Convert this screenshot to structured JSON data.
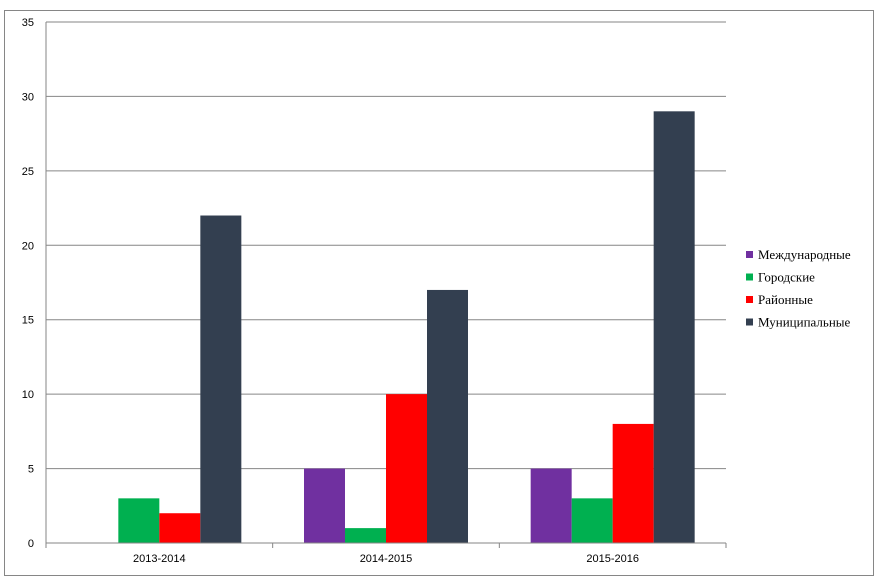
{
  "chart_data": {
    "type": "bar",
    "categories": [
      "2013-2014",
      "2014-2015",
      "2015-2016"
    ],
    "series": [
      {
        "name": "Международные",
        "color": "#7030a0",
        "values": [
          0,
          5,
          5
        ]
      },
      {
        "name": "Городские",
        "color": "#00b050",
        "values": [
          3,
          1,
          3
        ]
      },
      {
        "name": "Районные",
        "color": "#ff0000",
        "values": [
          2,
          10,
          8
        ]
      },
      {
        "name": "Муниципальные",
        "color": "#333f50",
        "values": [
          22,
          17,
          29
        ]
      }
    ],
    "ylim": [
      0,
      35
    ],
    "yticks": [
      0,
      5,
      10,
      15,
      20,
      25,
      30,
      35
    ],
    "grid": true,
    "legend_position": "right",
    "title": "",
    "xlabel": "",
    "ylabel": ""
  }
}
